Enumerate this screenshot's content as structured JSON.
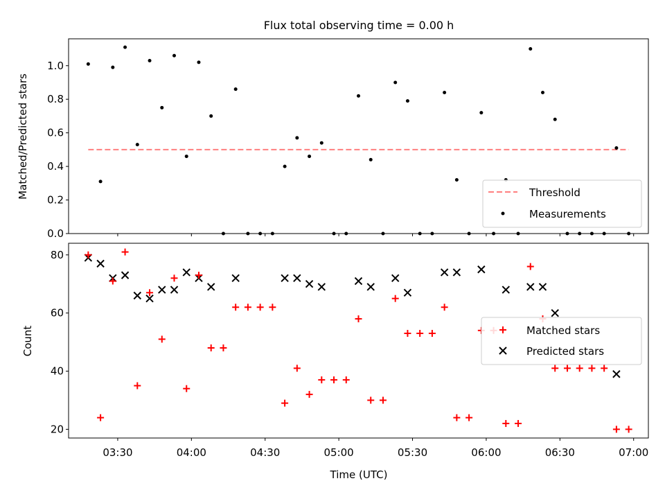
{
  "chart_data": [
    {
      "type": "scatter",
      "title": "Flux total observing time = 0.00 h",
      "xlabel": "",
      "ylabel": "Matched/Predicted stars",
      "ylim": [
        0,
        1.16
      ],
      "yticks": [
        "0.0",
        "0.2",
        "0.4",
        "0.6",
        "0.8",
        "1.0"
      ],
      "legend_position": "lower-right",
      "threshold": {
        "name": "Threshold",
        "value": 0.5,
        "x_range": [
          "03:18",
          "06:58"
        ],
        "color": "#ff7f7f",
        "style": "dashed"
      },
      "measurements": {
        "name": "Measurements",
        "color": "#000000",
        "x": [
          "03:18",
          "03:23",
          "03:28",
          "03:33",
          "03:38",
          "03:43",
          "03:48",
          "03:53",
          "03:58",
          "04:03",
          "04:08",
          "04:13",
          "04:18",
          "04:23",
          "04:28",
          "04:33",
          "04:38",
          "04:43",
          "04:48",
          "04:53",
          "04:58",
          "05:03",
          "05:08",
          "05:13",
          "05:18",
          "05:23",
          "05:28",
          "05:33",
          "05:38",
          "05:43",
          "05:48",
          "05:53",
          "05:58",
          "06:03",
          "06:08",
          "06:13",
          "06:18",
          "06:23",
          "06:28",
          "06:33",
          "06:38",
          "06:43",
          "06:48",
          "06:53",
          "06:58"
        ],
        "y": [
          1.01,
          0.31,
          0.99,
          1.11,
          0.53,
          1.03,
          0.75,
          1.06,
          0.46,
          1.02,
          0.7,
          0.0,
          0.86,
          0.0,
          0.0,
          0.0,
          0.4,
          0.57,
          0.46,
          0.54,
          0.0,
          0.0,
          0.82,
          0.44,
          0.0,
          0.9,
          0.79,
          0.0,
          0.0,
          0.84,
          0.32,
          0.0,
          0.72,
          0.0,
          0.32,
          0.0,
          1.1,
          0.84,
          0.68,
          0.0,
          0.0,
          0.0,
          0.0,
          0.51,
          0.0
        ]
      }
    },
    {
      "type": "scatter",
      "title": "",
      "xlabel": "Time (UTC)",
      "ylabel": "Count",
      "ylim": [
        17,
        84
      ],
      "yticks": [
        "20",
        "40",
        "60",
        "80"
      ],
      "xlim": [
        "03:10",
        "07:06"
      ],
      "xticks": [
        "03:30",
        "04:00",
        "04:30",
        "05:00",
        "05:30",
        "06:00",
        "06:30",
        "07:00"
      ],
      "legend_position": "center-right",
      "series": [
        {
          "name": "Matched stars",
          "marker": "+",
          "color": "#ff0000",
          "x": [
            "03:18",
            "03:23",
            "03:28",
            "03:33",
            "03:38",
            "03:43",
            "03:48",
            "03:53",
            "03:58",
            "04:03",
            "04:08",
            "04:13",
            "04:18",
            "04:23",
            "04:28",
            "04:33",
            "04:38",
            "04:43",
            "04:48",
            "04:53",
            "04:58",
            "05:03",
            "05:08",
            "05:13",
            "05:18",
            "05:23",
            "05:28",
            "05:33",
            "05:38",
            "05:43",
            "05:48",
            "05:53",
            "05:58",
            "06:03",
            "06:08",
            "06:13",
            "06:18",
            "06:23",
            "06:28",
            "06:33",
            "06:38",
            "06:43",
            "06:48",
            "06:53",
            "06:58"
          ],
          "y": [
            80,
            24,
            71,
            81,
            35,
            67,
            51,
            72,
            34,
            73,
            48,
            48,
            62,
            62,
            62,
            62,
            29,
            41,
            32,
            37,
            37,
            37,
            58,
            30,
            30,
            65,
            53,
            53,
            53,
            62,
            24,
            24,
            54,
            54,
            22,
            22,
            76,
            58,
            41,
            41,
            41,
            41,
            41,
            20,
            20
          ]
        },
        {
          "name": "Predicted stars",
          "marker": "x",
          "color": "#000000",
          "x": [
            "03:18",
            "03:23",
            "03:28",
            "03:33",
            "03:38",
            "03:43",
            "03:48",
            "03:53",
            "03:58",
            "04:03",
            "04:08",
            "04:18",
            "04:38",
            "04:43",
            "04:48",
            "04:53",
            "05:08",
            "05:13",
            "05:23",
            "05:28",
            "05:43",
            "05:48",
            "05:58",
            "06:08",
            "06:18",
            "06:23",
            "06:28",
            "06:53"
          ],
          "y": [
            79,
            77,
            72,
            73,
            66,
            65,
            68,
            68,
            74,
            72,
            69,
            72,
            72,
            72,
            70,
            69,
            71,
            69,
            72,
            67,
            74,
            74,
            75,
            68,
            69,
            69,
            60,
            39
          ]
        }
      ]
    }
  ]
}
